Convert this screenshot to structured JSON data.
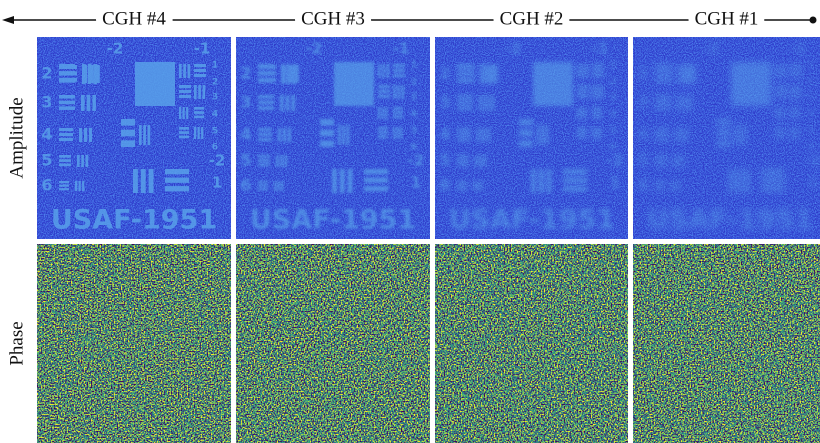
{
  "columns": [
    {
      "title": "CGH #4"
    },
    {
      "title": "CGH #3"
    },
    {
      "title": "CGH #2"
    },
    {
      "title": "CGH #1"
    }
  ],
  "rows": [
    "Amplitude",
    "Phase"
  ],
  "target": {
    "name": "USAF-1951",
    "labels": [
      "-2",
      "-1",
      "2",
      "3",
      "4",
      "5",
      "6",
      "1",
      "2",
      "3",
      "4",
      "5",
      "6",
      "-2",
      "1"
    ]
  }
}
